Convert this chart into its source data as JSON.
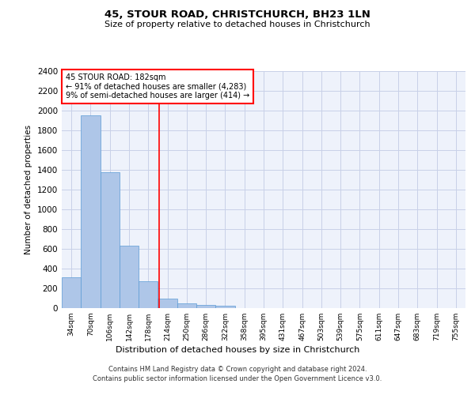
{
  "title": "45, STOUR ROAD, CHRISTCHURCH, BH23 1LN",
  "subtitle": "Size of property relative to detached houses in Christchurch",
  "xlabel": "Distribution of detached houses by size in Christchurch",
  "ylabel": "Number of detached properties",
  "bar_values": [
    315,
    1950,
    1380,
    630,
    275,
    100,
    48,
    35,
    28,
    0,
    0,
    0,
    0,
    0,
    0,
    0,
    0,
    0,
    0,
    0,
    0
  ],
  "bar_labels": [
    "34sqm",
    "70sqm",
    "106sqm",
    "142sqm",
    "178sqm",
    "214sqm",
    "250sqm",
    "286sqm",
    "322sqm",
    "358sqm",
    "395sqm",
    "431sqm",
    "467sqm",
    "503sqm",
    "539sqm",
    "575sqm",
    "611sqm",
    "647sqm",
    "683sqm",
    "719sqm",
    "755sqm"
  ],
  "ylim": [
    0,
    2400
  ],
  "yticks": [
    0,
    200,
    400,
    600,
    800,
    1000,
    1200,
    1400,
    1600,
    1800,
    2000,
    2200,
    2400
  ],
  "bar_color": "#aec6e8",
  "bar_edge_color": "#5b9bd5",
  "vline_x": 4.55,
  "vline_color": "red",
  "annotation_text": "45 STOUR ROAD: 182sqm\n← 91% of detached houses are smaller (4,283)\n9% of semi-detached houses are larger (414) →",
  "annotation_box_color": "red",
  "footer_line1": "Contains HM Land Registry data © Crown copyright and database right 2024.",
  "footer_line2": "Contains public sector information licensed under the Open Government Licence v3.0.",
  "bg_color": "#eef2fb",
  "grid_color": "#c8d0e8",
  "figsize": [
    6.0,
    5.0
  ],
  "dpi": 100
}
